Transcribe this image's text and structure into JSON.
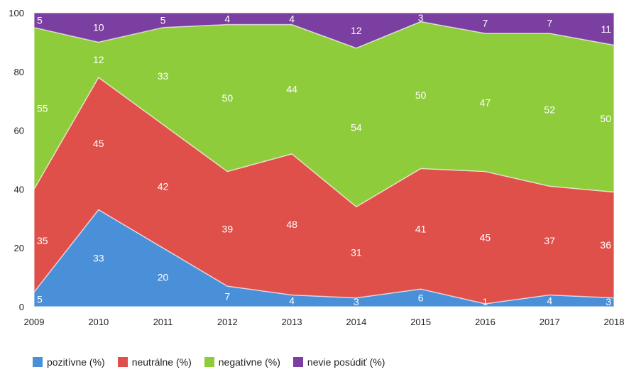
{
  "chart_data": {
    "type": "area",
    "stacked": true,
    "x": [
      "2009",
      "2010",
      "2011",
      "2012",
      "2013",
      "2014",
      "2015",
      "2016",
      "2017",
      "2018"
    ],
    "ylim": [
      0,
      100
    ],
    "yticks": [
      0,
      20,
      40,
      60,
      80,
      100
    ],
    "series": [
      {
        "name": "pozitívne (%)",
        "color": "#4a90d9",
        "values": [
          5,
          33,
          20,
          7,
          4,
          3,
          6,
          1,
          4,
          3
        ]
      },
      {
        "name": "neutrálne (%)",
        "color": "#e0504a",
        "values": [
          35,
          45,
          42,
          39,
          48,
          31,
          41,
          45,
          37,
          36
        ]
      },
      {
        "name": "negatívne (%)",
        "color": "#8fcc3c",
        "values": [
          55,
          12,
          33,
          50,
          44,
          54,
          50,
          47,
          52,
          50
        ]
      },
      {
        "name": "nevie posúdiť (%)",
        "color": "#7a3fa0",
        "values": [
          5,
          10,
          5,
          4,
          4,
          12,
          3,
          7,
          7,
          11
        ]
      }
    ],
    "legend_position": "bottom-left",
    "grid": false
  }
}
